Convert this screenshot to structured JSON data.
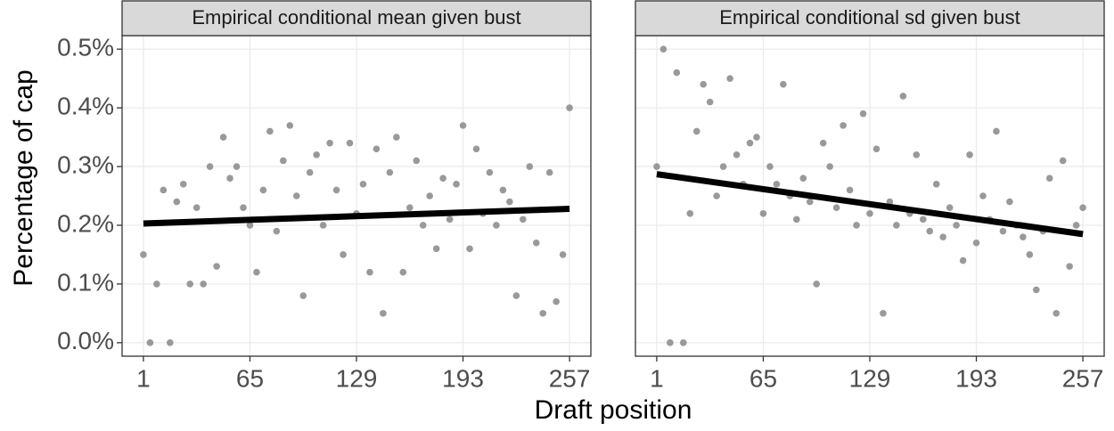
{
  "xlabel": "Draft position",
  "ylabel": "Percentage of cap",
  "chart_data": [
    {
      "type": "scatter",
      "title": "Empirical conditional mean given bust",
      "x": [
        1,
        5,
        9,
        13,
        17,
        21,
        25,
        29,
        33,
        37,
        41,
        45,
        49,
        53,
        57,
        61,
        65,
        69,
        73,
        77,
        81,
        85,
        89,
        93,
        97,
        101,
        105,
        109,
        113,
        117,
        121,
        125,
        129,
        133,
        137,
        141,
        145,
        149,
        153,
        157,
        161,
        165,
        169,
        173,
        177,
        181,
        185,
        189,
        193,
        197,
        201,
        205,
        209,
        213,
        217,
        221,
        225,
        229,
        233,
        237,
        241,
        245,
        249,
        253,
        257
      ],
      "values": [
        0.15,
        0,
        0.1,
        0.26,
        0,
        0.24,
        0.27,
        0.1,
        0.23,
        0.1,
        0.3,
        0.13,
        0.35,
        0.28,
        0.3,
        0.23,
        0.2,
        0.12,
        0.26,
        0.36,
        0.19,
        0.31,
        0.37,
        0.25,
        0.08,
        0.29,
        0.32,
        0.2,
        0.34,
        0.26,
        0.15,
        0.34,
        0.22,
        0.27,
        0.12,
        0.33,
        0.05,
        0.29,
        0.35,
        0.12,
        0.23,
        0.31,
        0.2,
        0.25,
        0.16,
        0.28,
        0.21,
        0.27,
        0.37,
        0.16,
        0.33,
        0.22,
        0.29,
        0.2,
        0.26,
        0.24,
        0.08,
        0.21,
        0.3,
        0.17,
        0.05,
        0.29,
        0.07,
        0.15,
        0.4
      ],
      "color": "#999999",
      "trend": {
        "x": [
          1,
          257
        ],
        "values": [
          0.203,
          0.228
        ],
        "color": "#000000"
      },
      "xlim": [
        -11.8,
        269.8
      ],
      "ylim": [
        -0.023,
        0.523
      ],
      "xticks": [
        1,
        65,
        129,
        193,
        257
      ],
      "yticks": [
        {
          "value": 0,
          "label": "0.0%"
        },
        {
          "value": 0.1,
          "label": "0.1%"
        },
        {
          "value": 0.2,
          "label": "0.2%"
        },
        {
          "value": 0.3,
          "label": "0.3%"
        },
        {
          "value": 0.4,
          "label": "0.4%"
        },
        {
          "value": 0.5,
          "label": "0.5%"
        }
      ],
      "grid": true
    },
    {
      "type": "scatter",
      "title": "Empirical conditional sd given bust",
      "x": [
        1,
        5,
        9,
        13,
        17,
        21,
        25,
        29,
        33,
        37,
        41,
        45,
        49,
        53,
        57,
        61,
        65,
        69,
        73,
        77,
        81,
        85,
        89,
        93,
        97,
        101,
        105,
        109,
        113,
        117,
        121,
        125,
        129,
        133,
        137,
        141,
        145,
        149,
        153,
        157,
        161,
        165,
        169,
        173,
        177,
        181,
        185,
        189,
        193,
        197,
        201,
        205,
        209,
        213,
        217,
        221,
        225,
        229,
        233,
        237,
        241,
        245,
        249,
        253,
        257
      ],
      "values": [
        0.3,
        0.5,
        0,
        0.46,
        0,
        0.22,
        0.36,
        0.44,
        0.41,
        0.25,
        0.3,
        0.45,
        0.32,
        0.27,
        0.34,
        0.35,
        0.22,
        0.3,
        0.27,
        0.44,
        0.25,
        0.21,
        0.28,
        0.24,
        0.1,
        0.34,
        0.3,
        0.23,
        0.37,
        0.26,
        0.2,
        0.39,
        0.22,
        0.33,
        0.05,
        0.24,
        0.2,
        0.42,
        0.22,
        0.32,
        0.21,
        0.19,
        0.27,
        0.18,
        0.23,
        0.2,
        0.14,
        0.32,
        0.17,
        0.25,
        0.21,
        0.36,
        0.19,
        0.24,
        0.2,
        0.18,
        0.15,
        0.09,
        0.19,
        0.28,
        0.05,
        0.31,
        0.13,
        0.2,
        0.23
      ],
      "color": "#999999",
      "trend": {
        "x": [
          1,
          257
        ],
        "values": [
          0.287,
          0.185
        ],
        "color": "#000000"
      },
      "xlim": [
        -11.8,
        269.8
      ],
      "ylim": [
        -0.023,
        0.523
      ],
      "xticks": [
        1,
        65,
        129,
        193,
        257
      ],
      "yticks": [
        {
          "value": 0,
          "label": "0.0%"
        },
        {
          "value": 0.1,
          "label": "0.1%"
        },
        {
          "value": 0.2,
          "label": "0.2%"
        },
        {
          "value": 0.3,
          "label": "0.3%"
        },
        {
          "value": 0.4,
          "label": "0.4%"
        },
        {
          "value": 0.5,
          "label": "0.5%"
        }
      ],
      "grid": true
    }
  ]
}
